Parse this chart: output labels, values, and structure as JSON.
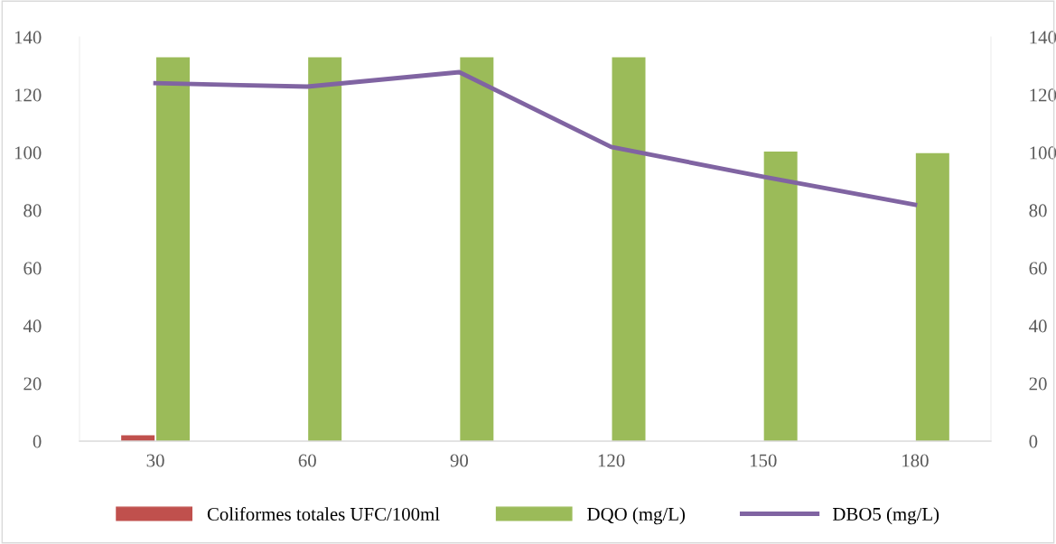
{
  "chart_data": {
    "type": "bar",
    "categories": [
      "30",
      "60",
      "90",
      "120",
      "150",
      "180"
    ],
    "series": [
      {
        "name": "Coliformes totales UFC/100ml",
        "color": "#c0504d",
        "values": [
          2,
          0,
          0,
          0,
          0,
          0
        ]
      },
      {
        "name": "DQO (mg/L)",
        "color": "#9bbb59",
        "values": [
          133,
          133,
          133,
          133,
          100.3,
          99.8
        ]
      },
      {
        "name": "DBO5 (mg/L)",
        "type": "line",
        "color": "#8064a2",
        "values": [
          124,
          122.8,
          127.8,
          101.9,
          91.6,
          81.9
        ]
      }
    ],
    "ylim": [
      0,
      140
    ],
    "yticks": [
      0,
      20,
      40,
      60,
      80,
      100,
      120,
      140
    ],
    "y2lim": [
      0,
      140
    ],
    "y2ticks": [
      0,
      20,
      40,
      60,
      80,
      100,
      120,
      140
    ],
    "grid": false,
    "legend": "bottom",
    "marker": "none",
    "line_style": "solid"
  }
}
